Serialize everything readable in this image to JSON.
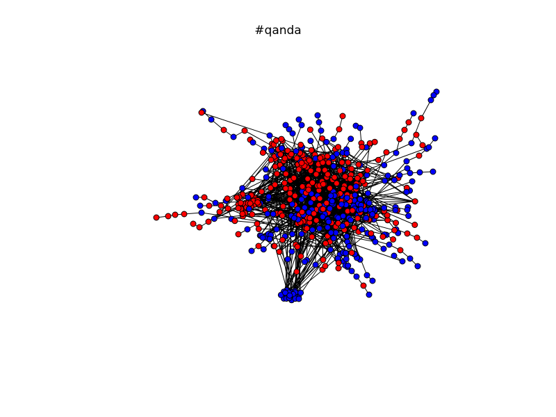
{
  "title": "#qanda",
  "colors": {
    "node_a": "#ff0000",
    "node_b": "#0000ff",
    "edge": "#000000",
    "background": "#ffffff"
  }
}
